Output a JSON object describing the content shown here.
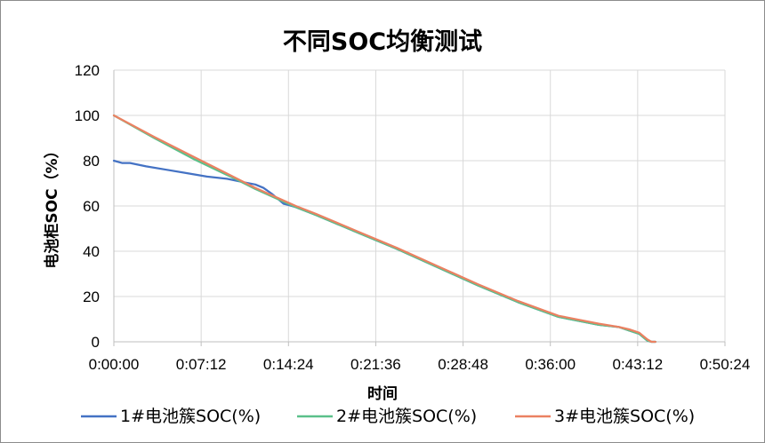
{
  "chart_data": {
    "type": "line",
    "title": "不同SOC均衡测试",
    "xlabel": "时间",
    "ylabel": "电池柜SOC（%）",
    "xlim": [
      0,
      3024
    ],
    "ylim": [
      0,
      120
    ],
    "x_ticks": [
      0,
      432,
      864,
      1296,
      1728,
      2160,
      2592,
      3024
    ],
    "x_tick_labels": [
      "0:00:00",
      "0:07:12",
      "0:14:24",
      "0:21:36",
      "0:28:48",
      "0:36:00",
      "0:43:12",
      "0:50:24"
    ],
    "y_ticks": [
      0,
      20,
      40,
      60,
      80,
      100,
      120
    ],
    "y_tick_labels": [
      "0",
      "20",
      "40",
      "60",
      "80",
      "100",
      "120"
    ],
    "grid": true,
    "legend_position": "bottom",
    "series": [
      {
        "name": "1#电池簇SOC(%)",
        "color": "#4472C4",
        "x": [
          0,
          40,
          80,
          160,
          260,
          360,
          460,
          560,
          640,
          700,
          740,
          780,
          820,
          840,
          860,
          900,
          1000,
          1200,
          1400,
          1600,
          1800,
          2000,
          2200,
          2400,
          2500,
          2550,
          2600,
          2620,
          2640,
          2660,
          2680
        ],
        "y": [
          80,
          79,
          79,
          77.5,
          76,
          74.5,
          73,
          72,
          70.5,
          69.5,
          68,
          65.5,
          62.5,
          61,
          60.5,
          59.5,
          56,
          48.5,
          41,
          33,
          25,
          17.5,
          11,
          7.5,
          6.5,
          5,
          3.5,
          2,
          0.5,
          0,
          0
        ]
      },
      {
        "name": "2#电池簇SOC(%)",
        "color": "#5BC08A",
        "x": [
          0,
          200,
          400,
          600,
          700,
          800,
          900,
          1000,
          1200,
          1400,
          1600,
          1800,
          2000,
          2200,
          2400,
          2500,
          2550,
          2600,
          2620,
          2640,
          2660,
          2680
        ],
        "y": [
          100,
          90,
          80.5,
          72,
          67.5,
          63.5,
          59.5,
          56,
          48.5,
          41,
          33,
          25,
          17.5,
          11,
          7.5,
          6.5,
          5,
          3.5,
          2,
          0.5,
          0,
          0
        ]
      },
      {
        "name": "3#电池簇SOC(%)",
        "color": "#EB8162",
        "x": [
          0,
          200,
          400,
          600,
          700,
          800,
          900,
          1000,
          1200,
          1400,
          1600,
          1800,
          2000,
          2200,
          2400,
          2500,
          2550,
          2600,
          2620,
          2640,
          2660,
          2680
        ],
        "y": [
          100,
          90.5,
          81.5,
          72.5,
          68,
          64,
          60,
          56.5,
          49,
          41.5,
          33.5,
          25.5,
          18,
          11.5,
          8,
          6.5,
          5.5,
          4,
          2.5,
          1,
          0,
          0
        ]
      }
    ]
  }
}
